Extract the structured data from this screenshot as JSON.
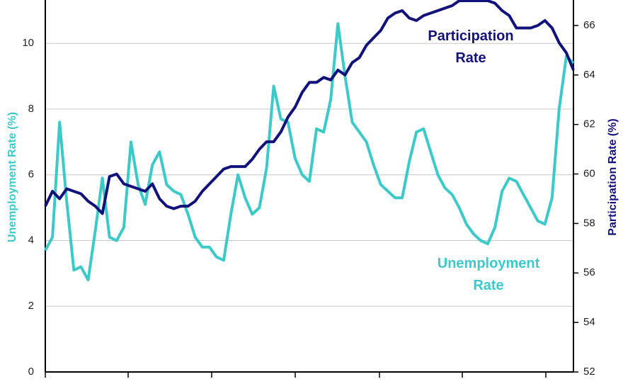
{
  "chart_data": {
    "type": "line",
    "y_label": "Unemployment Rate (%)",
    "y2_label": "Participation Rate (%)",
    "ylim": [
      0,
      11.32
    ],
    "yticks": [
      0,
      2,
      4,
      6,
      8,
      10
    ],
    "y2lim": [
      52,
      67.03
    ],
    "y2ticks": [
      52,
      54,
      56,
      58,
      60,
      62,
      64,
      66
    ],
    "grid": true,
    "series": [
      {
        "name": "Participation Rate",
        "color": "#12127a",
        "axis": "y2",
        "values": [
          58.7,
          59.3,
          59.0,
          59.4,
          59.3,
          59.2,
          58.9,
          58.7,
          58.4,
          59.9,
          60.0,
          59.6,
          59.5,
          59.4,
          59.3,
          59.6,
          59.0,
          58.7,
          58.6,
          58.7,
          58.7,
          58.9,
          59.3,
          59.6,
          59.9,
          60.2,
          60.3,
          60.3,
          60.3,
          60.6,
          61.0,
          61.3,
          61.3,
          61.7,
          62.3,
          62.7,
          63.3,
          63.7,
          63.7,
          63.9,
          63.8,
          64.2,
          64.0,
          64.5,
          64.7,
          65.2,
          65.5,
          65.8,
          66.3,
          66.5,
          66.6,
          66.3,
          66.2,
          66.4,
          66.5,
          66.6,
          66.7,
          66.8,
          67.0,
          67.0,
          67.0,
          67.0,
          67.0,
          66.9,
          66.6,
          66.4,
          65.9,
          65.9,
          65.9,
          66.0,
          66.2,
          65.9,
          65.3,
          64.9,
          64.2
        ]
      },
      {
        "name": "Unemployment Rate",
        "color": "#3ec9c9",
        "values": [
          3.7,
          4.1,
          7.6,
          5.2,
          3.1,
          3.2,
          2.8,
          4.3,
          5.9,
          4.1,
          4.0,
          4.4,
          7.0,
          5.7,
          5.1,
          6.3,
          6.7,
          5.7,
          5.5,
          5.4,
          4.8,
          4.1,
          3.8,
          3.8,
          3.5,
          3.4,
          4.8,
          6.0,
          5.3,
          4.8,
          5.0,
          6.2,
          8.7,
          7.7,
          7.6,
          6.5,
          6.0,
          5.8,
          7.4,
          7.3,
          8.3,
          10.6,
          9.0,
          7.6,
          7.3,
          7.0,
          6.3,
          5.7,
          5.5,
          5.3,
          5.3,
          6.4,
          7.3,
          7.4,
          6.7,
          6.0,
          5.6,
          5.4,
          5.0,
          4.5,
          4.2,
          4.0,
          3.9,
          4.4,
          5.5,
          5.9,
          5.8,
          5.4,
          5.0,
          4.6,
          4.5,
          5.3,
          8.0,
          9.6,
          9.4
        ]
      }
    ]
  }
}
